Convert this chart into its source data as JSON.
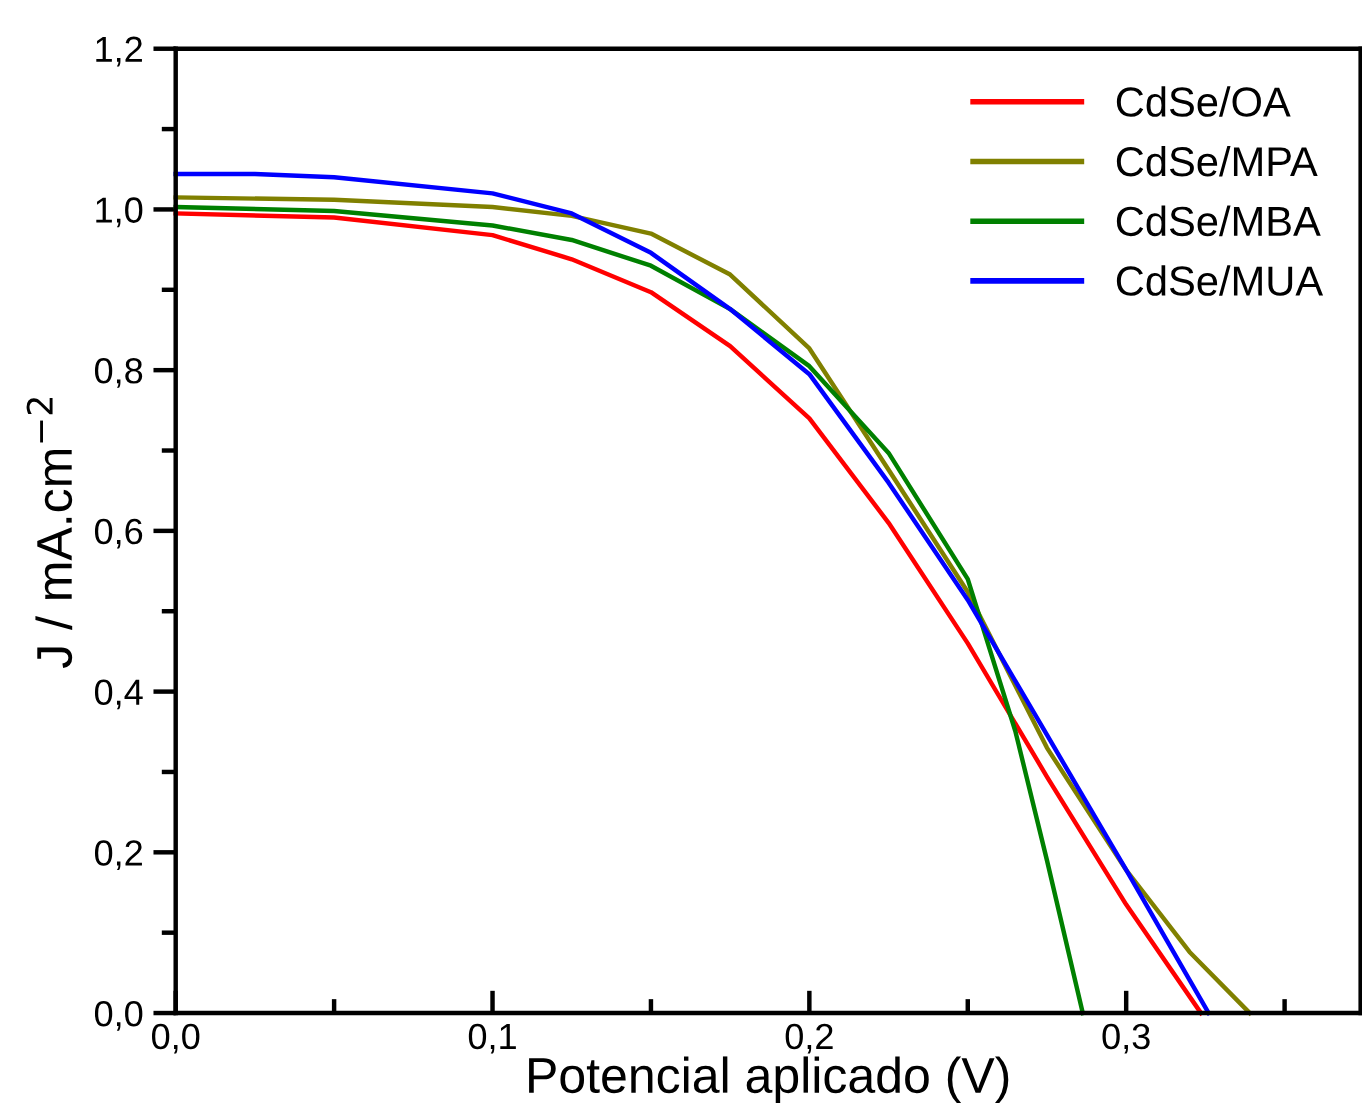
{
  "chart_data": {
    "type": "line",
    "xlabel": "Potencial aplicado (V)",
    "ylabel": "J / mA.cm$^{−2}$",
    "xlim": [
      0,
      0.374
    ],
    "ylim": [
      0,
      1.2
    ],
    "xticks": [
      {
        "value": 0,
        "label": "0,0"
      },
      {
        "value": 0.1,
        "label": "0,1"
      },
      {
        "value": 0.2,
        "label": "0,2"
      },
      {
        "value": 0.3,
        "label": "0,3"
      }
    ],
    "yticks": [
      {
        "value": 0,
        "label": "0,0"
      },
      {
        "value": 0.2,
        "label": "0,2"
      },
      {
        "value": 0.4,
        "label": "0,4"
      },
      {
        "value": 0.6,
        "label": "0,6"
      },
      {
        "value": 0.8,
        "label": "0,8"
      },
      {
        "value": 1.0,
        "label": "1,0"
      },
      {
        "value": 1.2,
        "label": "1,2"
      }
    ],
    "grid": false,
    "legend": "top right",
    "marker": "none",
    "line_style": "solid",
    "series": [
      {
        "name": "CdSe/OA",
        "color": "#ff0000",
        "x": [
          0,
          0.05,
          0.1,
          0.125,
          0.15,
          0.175,
          0.2,
          0.225,
          0.25,
          0.275,
          0.3,
          0.3236
        ],
        "values": [
          0.995,
          0.99,
          0.968,
          0.938,
          0.897,
          0.83,
          0.74,
          0.61,
          0.46,
          0.294,
          0.135,
          0
        ]
      },
      {
        "name": "CdSe/MPA",
        "color": "#808000",
        "x": [
          0,
          0.05,
          0.1,
          0.125,
          0.15,
          0.175,
          0.2,
          0.225,
          0.25,
          0.275,
          0.3,
          0.32,
          0.339
        ],
        "values": [
          1.015,
          1.012,
          1.003,
          0.992,
          0.97,
          0.919,
          0.827,
          0.676,
          0.524,
          0.33,
          0.178,
          0.076,
          0
        ]
      },
      {
        "name": "CdSe/MBA",
        "color": "#008000",
        "x": [
          0,
          0.05,
          0.1,
          0.125,
          0.15,
          0.175,
          0.2,
          0.225,
          0.25,
          0.265,
          0.275,
          0.2863
        ],
        "values": [
          1.003,
          0.998,
          0.98,
          0.962,
          0.93,
          0.876,
          0.805,
          0.697,
          0.54,
          0.351,
          0.19,
          0
        ]
      },
      {
        "name": "CdSe/MUA",
        "color": "#0000ff",
        "x": [
          0,
          0.025,
          0.05,
          0.1,
          0.125,
          0.15,
          0.175,
          0.2,
          0.225,
          0.25,
          0.275,
          0.3,
          0.326
        ],
        "values": [
          1.044,
          1.044,
          1.04,
          1.02,
          0.995,
          0.946,
          0.876,
          0.795,
          0.66,
          0.514,
          0.346,
          0.178,
          0
        ]
      }
    ]
  }
}
